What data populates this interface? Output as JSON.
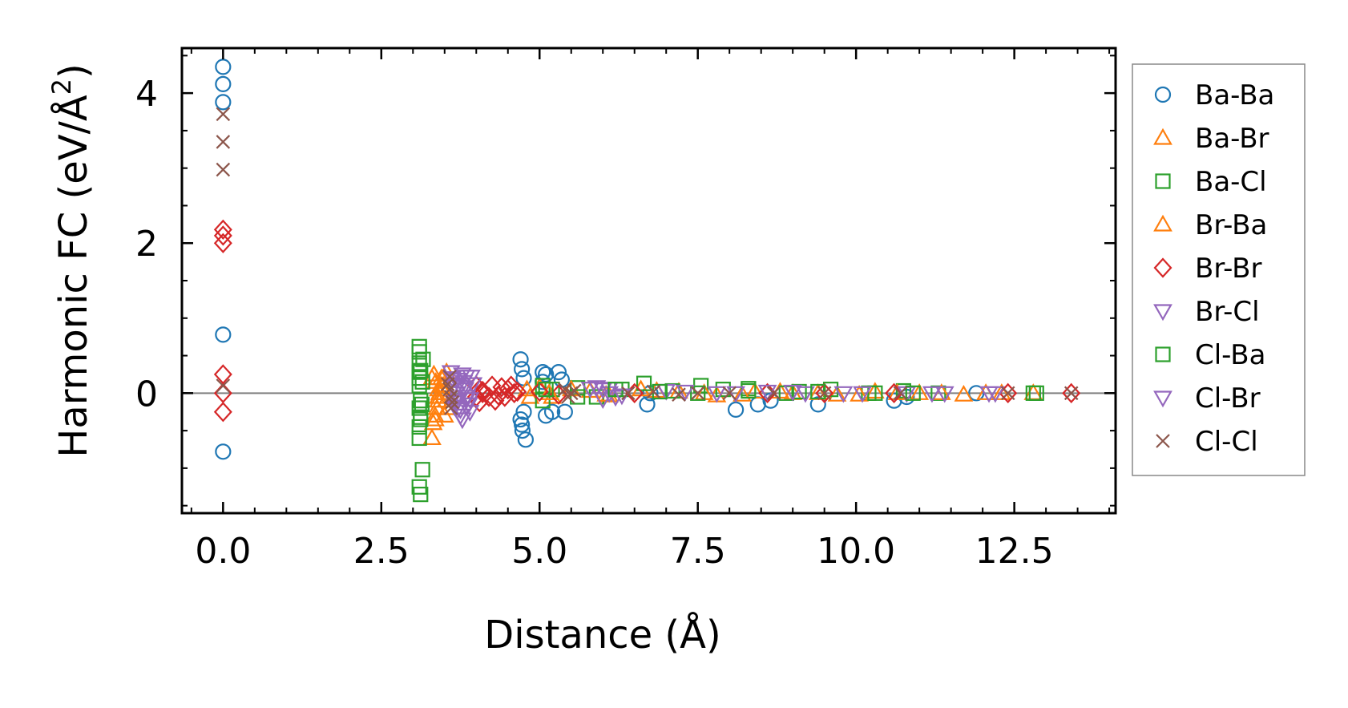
{
  "chart_data": {
    "type": "scatter",
    "title": "",
    "xlabel": "Distance (Å)",
    "ylabel_prefix": "Harmonic FC (eV/Å",
    "ylabel_exponent": "2",
    "ylabel_suffix": ")",
    "xlim": [
      -0.65,
      14.1
    ],
    "ylim": [
      -1.6,
      4.6
    ],
    "x_ticks": [
      0.0,
      2.5,
      5.0,
      7.5,
      10.0,
      12.5
    ],
    "x_tick_labels": [
      "0.0",
      "2.5",
      "5.0",
      "7.5",
      "10.0",
      "12.5"
    ],
    "y_ticks": [
      0,
      2,
      4
    ],
    "y_tick_labels": [
      "0",
      "2",
      "4"
    ],
    "x_minor_step": 0.5,
    "y_minor_step": 0.5,
    "reference_line_y": 0,
    "legend_position": "outside-right",
    "series": [
      {
        "name": "Ba-Ba",
        "marker": "circle",
        "color": "#1f77b4",
        "x": [
          0,
          0,
          0,
          0,
          0,
          4.7,
          4.72,
          4.75,
          4.7,
          4.72,
          4.73,
          4.78,
          4.75,
          5.05,
          5.1,
          5.3,
          5.35,
          5.2,
          5.1,
          5.4,
          5.05,
          6.7,
          6.75,
          8.1,
          8.45,
          8.65,
          9.4,
          10.6,
          10.8,
          11.9
        ],
        "y": [
          4.35,
          4.12,
          3.88,
          0.78,
          -0.78,
          0.45,
          0.32,
          0.2,
          -0.35,
          -0.42,
          -0.5,
          -0.62,
          -0.25,
          0.28,
          0.25,
          0.28,
          0.18,
          -0.25,
          -0.3,
          -0.25,
          0.15,
          -0.15,
          0.0,
          -0.22,
          -0.15,
          -0.1,
          -0.15,
          -0.1,
          -0.05,
          0.0
        ]
      },
      {
        "name": "Ba-Br",
        "marker": "triangle-up",
        "color": "#ff7f0e",
        "x": [
          3.3,
          3.32,
          3.35,
          3.38,
          3.4,
          3.42,
          3.45,
          3.3,
          3.33,
          3.36,
          3.4,
          3.35,
          3.4,
          4.8,
          4.85,
          5.0,
          5.2,
          5.8,
          6.1,
          6.6,
          7.2,
          7.8,
          8.4,
          9.0,
          9.7,
          10.3,
          11.0,
          11.7,
          12.3,
          12.8
        ],
        "y": [
          -0.6,
          -0.4,
          -0.3,
          -0.2,
          -0.1,
          0.0,
          0.1,
          0.2,
          0.25,
          0.15,
          -0.05,
          -0.35,
          0.05,
          0.05,
          -0.05,
          0.08,
          -0.05,
          0.03,
          -0.03,
          0.05,
          0.02,
          -0.03,
          0.02,
          0.0,
          -0.02,
          0.02,
          0.0,
          -0.02,
          0.0,
          0.0
        ]
      },
      {
        "name": "Ba-Cl",
        "marker": "square",
        "color": "#2ca02c",
        "x": [
          3.1,
          3.1,
          3.1,
          3.1,
          3.1,
          3.1,
          3.12,
          3.1,
          3.12,
          3.1,
          3.1,
          3.15,
          3.1,
          3.12,
          5.05,
          5.05,
          5.2,
          5.6,
          5.9,
          6.3,
          6.65,
          7.1,
          7.55,
          7.9,
          8.3,
          9.1,
          9.6,
          10.2,
          10.75,
          11.3,
          12.85
        ],
        "y": [
          0.62,
          0.55,
          0.4,
          0.28,
          0.2,
          0.1,
          -0.1,
          -0.2,
          -0.32,
          -0.45,
          -0.6,
          -1.02,
          -1.25,
          -1.35,
          0.1,
          -0.1,
          0.05,
          0.07,
          -0.05,
          0.05,
          0.13,
          0.03,
          0.1,
          0.05,
          0.06,
          0.02,
          0.05,
          0.0,
          0.03,
          0.0,
          0.0
        ]
      },
      {
        "name": "Br-Ba",
        "marker": "triangle-up",
        "color": "#ff7f0e",
        "x": [
          3.45,
          3.48,
          3.5,
          3.52,
          3.55,
          3.5,
          3.53,
          5.15,
          5.5,
          6.05,
          6.85,
          7.6,
          8.2,
          8.8,
          9.4,
          10.05,
          10.65,
          11.35,
          12.05
        ],
        "y": [
          0.2,
          0.1,
          0.0,
          -0.1,
          -0.2,
          -0.3,
          0.28,
          0.0,
          0.05,
          -0.02,
          0.03,
          0.0,
          -0.02,
          0.02,
          0.0,
          -0.02,
          0.0,
          0.0,
          0.0
        ]
      },
      {
        "name": "Br-Br",
        "marker": "diamond",
        "color": "#d62728",
        "x": [
          0,
          0,
          0,
          0,
          0,
          0,
          4.0,
          4.05,
          4.1,
          4.2,
          4.3,
          4.4,
          4.5,
          4.6,
          4.05,
          4.25,
          4.45,
          4.65,
          4.1,
          4.35,
          4.55,
          4.0,
          5.0,
          5.3,
          6.5,
          8.6,
          9.5,
          10.6,
          12.4,
          13.4
        ],
        "y": [
          2.18,
          2.1,
          2.0,
          0.25,
          0.0,
          -0.25,
          0.1,
          0.05,
          0.0,
          -0.05,
          -0.1,
          0.08,
          0.05,
          0.0,
          -0.12,
          0.1,
          -0.05,
          0.02,
          0.03,
          -0.03,
          0.1,
          -0.05,
          0.02,
          -0.02,
          0.0,
          0.0,
          0.0,
          0.0,
          0.0,
          0.0
        ]
      },
      {
        "name": "Br-Cl",
        "marker": "triangle-down",
        "color": "#9467bd",
        "x": [
          3.6,
          3.62,
          3.65,
          3.68,
          3.7,
          3.72,
          3.75,
          3.78,
          3.8,
          3.82,
          3.85,
          3.88,
          3.9,
          3.92,
          3.95,
          3.65,
          3.7,
          3.75,
          3.8,
          3.85,
          5.9,
          6.0,
          6.1,
          6.2,
          6.0,
          6.1,
          7.0,
          7.8,
          8.6,
          9.2,
          9.8,
          10.8,
          11.4,
          12.2
        ],
        "y": [
          0.28,
          0.2,
          0.1,
          0.0,
          -0.1,
          -0.2,
          -0.3,
          0.25,
          0.15,
          0.05,
          -0.05,
          -0.15,
          -0.25,
          0.22,
          0.12,
          -0.12,
          0.18,
          -0.22,
          0.08,
          -0.08,
          0.08,
          0.05,
          0.0,
          -0.05,
          -0.08,
          0.06,
          0.03,
          0.0,
          0.02,
          0.0,
          0.0,
          0.0,
          0.0,
          0.0
        ]
      },
      {
        "name": "Cl-Ba",
        "marker": "square",
        "color": "#2ca02c",
        "x": [
          3.12,
          3.15,
          3.14,
          3.12,
          3.16,
          5.1,
          5.6,
          6.2,
          6.9,
          7.5,
          8.3,
          8.9,
          9.4,
          10.3,
          10.9,
          12.8
        ],
        "y": [
          0.3,
          0.15,
          -0.15,
          -0.35,
          0.45,
          0.05,
          -0.05,
          0.05,
          0.02,
          0.0,
          0.03,
          0.0,
          0.02,
          0.0,
          0.0,
          0.0
        ]
      },
      {
        "name": "Cl-Br",
        "marker": "triangle-down",
        "color": "#9467bd",
        "x": [
          3.66,
          3.72,
          3.78,
          3.84,
          3.9,
          5.8,
          6.3,
          7.3,
          8.1,
          9.0,
          10.1,
          11.2,
          12.1
        ],
        "y": [
          -0.18,
          0.12,
          -0.35,
          0.22,
          -0.08,
          0.06,
          -0.03,
          0.02,
          0.0,
          0.02,
          0.0,
          0.0,
          0.0
        ]
      },
      {
        "name": "Cl-Cl",
        "marker": "x",
        "color": "#8c564b",
        "x": [
          0,
          0,
          0,
          0,
          3.55,
          3.58,
          3.6,
          3.62,
          3.58,
          3.6,
          5.4,
          5.45,
          5.5,
          5.55,
          6.4,
          6.8,
          7.2,
          7.5,
          8.0,
          8.7,
          9.5,
          10.7,
          12.4,
          13.4
        ],
        "y": [
          3.72,
          3.35,
          2.98,
          0.1,
          0.12,
          0.05,
          -0.05,
          -0.12,
          0.22,
          -0.2,
          0.05,
          -0.05,
          0.0,
          0.03,
          0.0,
          0.02,
          -0.02,
          0.0,
          0.0,
          0.0,
          0.0,
          0.0,
          0.0,
          0.0
        ]
      }
    ]
  }
}
